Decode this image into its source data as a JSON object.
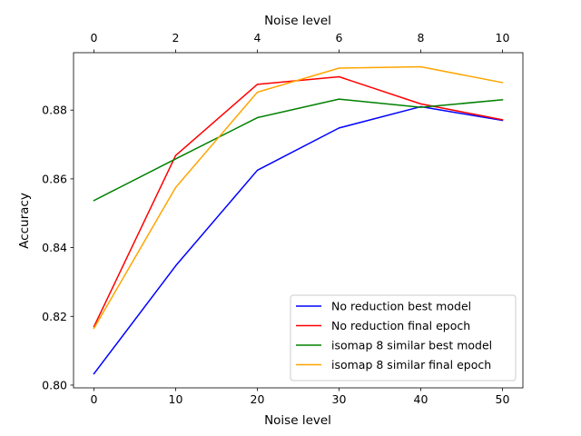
{
  "chart_data": {
    "type": "line",
    "title": "",
    "xlabel": "Noise level",
    "ylabel": "Accuracy",
    "top_xlabel": "Noise level",
    "x": [
      0,
      10,
      20,
      30,
      40,
      50
    ],
    "x_ticks": [
      "0",
      "10",
      "20",
      "30",
      "40",
      "50"
    ],
    "top_x_ticks": [
      "0",
      "2",
      "4",
      "6",
      "8",
      "10"
    ],
    "y_ticks": [
      "0.80",
      "0.82",
      "0.84",
      "0.86",
      "0.88"
    ],
    "xlim": [
      -2.5,
      52.5
    ],
    "ylim": [
      0.7992,
      0.8967
    ],
    "grid": false,
    "legend_position": "lower-right",
    "series": [
      {
        "name": "No reduction best model",
        "color": "#0000ff",
        "values": [
          0.8033,
          0.8347,
          0.8625,
          0.8748,
          0.881,
          0.877
        ]
      },
      {
        "name": "No reduction final epoch",
        "color": "#ff0000",
        "values": [
          0.817,
          0.8668,
          0.8875,
          0.8897,
          0.8818,
          0.8772
        ]
      },
      {
        "name": "isomap 8 similar best model",
        "color": "#008000",
        "values": [
          0.8537,
          0.8658,
          0.8778,
          0.8832,
          0.8808,
          0.883
        ]
      },
      {
        "name": "isomap 8 similar final epoch",
        "color": "#ffa500",
        "values": [
          0.8165,
          0.8575,
          0.8852,
          0.8922,
          0.8926,
          0.888
        ]
      }
    ]
  }
}
